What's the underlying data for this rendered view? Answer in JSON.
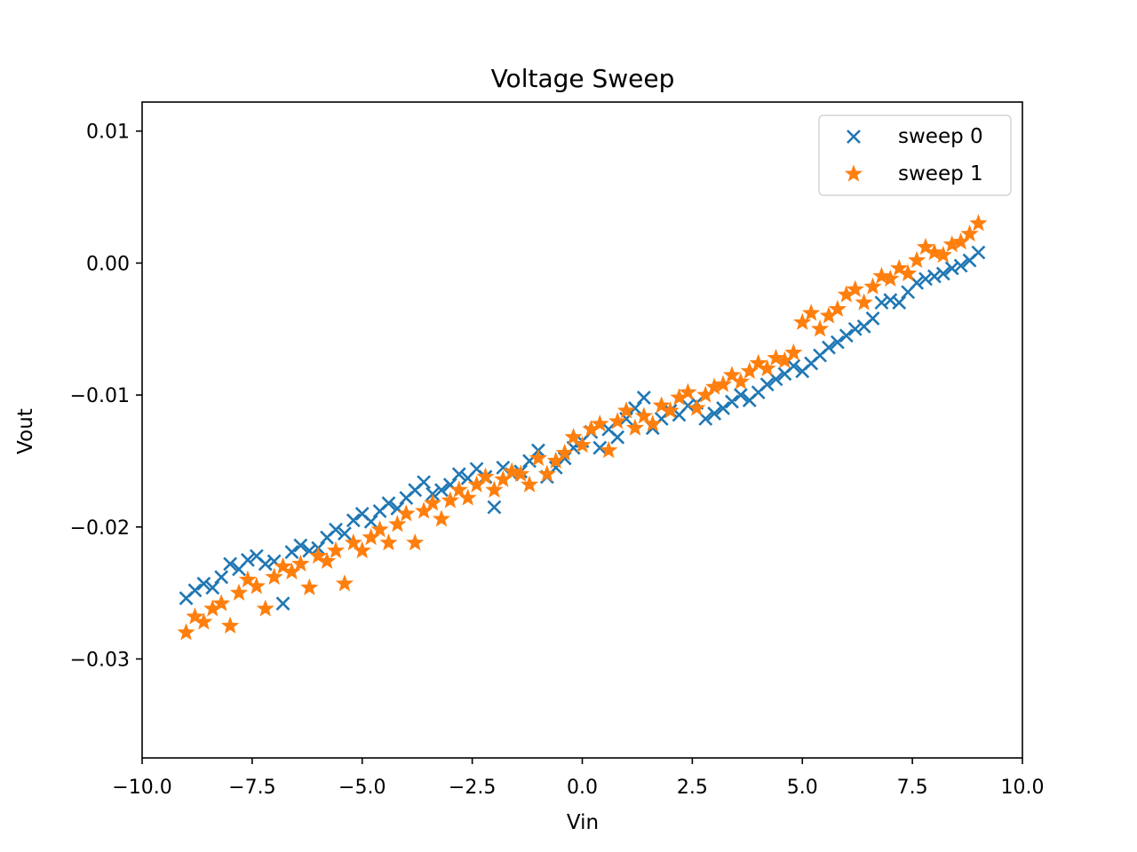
{
  "chart_data": {
    "type": "scatter",
    "title": "Voltage Sweep",
    "xlabel": "Vin",
    "ylabel": "Vout",
    "xlim": [
      -10.0,
      10.0
    ],
    "ylim": [
      -0.0375,
      0.0122
    ],
    "xticks": [
      -10.0,
      -7.5,
      -5.0,
      -2.5,
      0.0,
      2.5,
      5.0,
      7.5,
      10.0
    ],
    "xtick_labels": [
      "−10.0",
      "−7.5",
      "−5.0",
      "−2.5",
      "0.0",
      "2.5",
      "5.0",
      "7.5",
      "10.0"
    ],
    "yticks": [
      0.01,
      0.0,
      -0.01,
      -0.02,
      -0.03
    ],
    "ytick_labels": [
      "0.01",
      "0.00",
      "−0.01",
      "−0.02",
      "−0.03"
    ],
    "grid": false,
    "legend_position": "top-right",
    "series": [
      {
        "name": "sweep 0",
        "marker": "x",
        "color": "#1f77b4",
        "points": [
          [
            -9.0,
            -0.0254
          ],
          [
            -8.8,
            -0.0248
          ],
          [
            -8.6,
            -0.0243
          ],
          [
            -8.4,
            -0.0246
          ],
          [
            -8.2,
            -0.0238
          ],
          [
            -8.0,
            -0.0228
          ],
          [
            -7.8,
            -0.0232
          ],
          [
            -7.6,
            -0.0225
          ],
          [
            -7.4,
            -0.0222
          ],
          [
            -7.2,
            -0.0228
          ],
          [
            -7.0,
            -0.0226
          ],
          [
            -6.8,
            -0.0258
          ],
          [
            -6.6,
            -0.0219
          ],
          [
            -6.4,
            -0.0214
          ],
          [
            -6.2,
            -0.0218
          ],
          [
            -6.0,
            -0.0216
          ],
          [
            -5.8,
            -0.0208
          ],
          [
            -5.6,
            -0.0202
          ],
          [
            -5.4,
            -0.0205
          ],
          [
            -5.2,
            -0.0195
          ],
          [
            -5.0,
            -0.019
          ],
          [
            -4.8,
            -0.0196
          ],
          [
            -4.6,
            -0.0188
          ],
          [
            -4.4,
            -0.0182
          ],
          [
            -4.2,
            -0.0186
          ],
          [
            -4.0,
            -0.0178
          ],
          [
            -3.8,
            -0.0172
          ],
          [
            -3.6,
            -0.0166
          ],
          [
            -3.4,
            -0.0175
          ],
          [
            -3.2,
            -0.0172
          ],
          [
            -3.0,
            -0.0168
          ],
          [
            -2.8,
            -0.016
          ],
          [
            -2.6,
            -0.0163
          ],
          [
            -2.4,
            -0.0156
          ],
          [
            -2.2,
            -0.0162
          ],
          [
            -2.0,
            -0.0185
          ],
          [
            -1.8,
            -0.0155
          ],
          [
            -1.6,
            -0.016
          ],
          [
            -1.4,
            -0.0158
          ],
          [
            -1.2,
            -0.015
          ],
          [
            -1.0,
            -0.0142
          ],
          [
            -0.8,
            -0.0162
          ],
          [
            -0.6,
            -0.0155
          ],
          [
            -0.4,
            -0.0148
          ],
          [
            -0.2,
            -0.014
          ],
          [
            0.0,
            -0.0135
          ],
          [
            0.2,
            -0.0128
          ],
          [
            0.4,
            -0.014
          ],
          [
            0.6,
            -0.0126
          ],
          [
            0.8,
            -0.0132
          ],
          [
            1.0,
            -0.0118
          ],
          [
            1.2,
            -0.011
          ],
          [
            1.4,
            -0.0102
          ],
          [
            1.6,
            -0.0125
          ],
          [
            1.8,
            -0.0118
          ],
          [
            2.0,
            -0.0112
          ],
          [
            2.2,
            -0.0115
          ],
          [
            2.4,
            -0.0108
          ],
          [
            2.6,
            -0.0106
          ],
          [
            2.8,
            -0.0118
          ],
          [
            3.0,
            -0.0114
          ],
          [
            3.2,
            -0.011
          ],
          [
            3.4,
            -0.0105
          ],
          [
            3.6,
            -0.01
          ],
          [
            3.8,
            -0.0104
          ],
          [
            4.0,
            -0.0098
          ],
          [
            4.2,
            -0.0092
          ],
          [
            4.4,
            -0.0088
          ],
          [
            4.6,
            -0.0084
          ],
          [
            4.8,
            -0.0078
          ],
          [
            5.0,
            -0.0082
          ],
          [
            5.2,
            -0.0076
          ],
          [
            5.4,
            -0.007
          ],
          [
            5.6,
            -0.0064
          ],
          [
            5.8,
            -0.006
          ],
          [
            6.0,
            -0.0055
          ],
          [
            6.2,
            -0.005
          ],
          [
            6.4,
            -0.0048
          ],
          [
            6.6,
            -0.0042
          ],
          [
            6.8,
            -0.003
          ],
          [
            7.0,
            -0.0028
          ],
          [
            7.2,
            -0.003
          ],
          [
            7.4,
            -0.0022
          ],
          [
            7.6,
            -0.0015
          ],
          [
            7.8,
            -0.0012
          ],
          [
            8.0,
            -0.001
          ],
          [
            8.2,
            -0.0008
          ],
          [
            8.4,
            -0.0004
          ],
          [
            8.6,
            -0.0002
          ],
          [
            8.8,
            0.0002
          ],
          [
            9.0,
            0.0008
          ]
        ]
      },
      {
        "name": "sweep 1",
        "marker": "*",
        "color": "#ff7f0e",
        "points": [
          [
            -9.0,
            -0.028
          ],
          [
            -8.8,
            -0.0268
          ],
          [
            -8.6,
            -0.0272
          ],
          [
            -8.4,
            -0.0262
          ],
          [
            -8.2,
            -0.0258
          ],
          [
            -8.0,
            -0.0275
          ],
          [
            -7.8,
            -0.025
          ],
          [
            -7.6,
            -0.024
          ],
          [
            -7.4,
            -0.0245
          ],
          [
            -7.2,
            -0.0262
          ],
          [
            -7.0,
            -0.0238
          ],
          [
            -6.8,
            -0.023
          ],
          [
            -6.6,
            -0.0234
          ],
          [
            -6.4,
            -0.0228
          ],
          [
            -6.2,
            -0.0246
          ],
          [
            -6.0,
            -0.0222
          ],
          [
            -5.8,
            -0.0226
          ],
          [
            -5.6,
            -0.0218
          ],
          [
            -5.4,
            -0.0243
          ],
          [
            -5.2,
            -0.0212
          ],
          [
            -5.0,
            -0.0218
          ],
          [
            -4.8,
            -0.0208
          ],
          [
            -4.6,
            -0.0202
          ],
          [
            -4.4,
            -0.0212
          ],
          [
            -4.2,
            -0.0198
          ],
          [
            -4.0,
            -0.019
          ],
          [
            -3.8,
            -0.0212
          ],
          [
            -3.6,
            -0.0188
          ],
          [
            -3.4,
            -0.0182
          ],
          [
            -3.2,
            -0.0194
          ],
          [
            -3.0,
            -0.018
          ],
          [
            -2.8,
            -0.0172
          ],
          [
            -2.6,
            -0.0178
          ],
          [
            -2.4,
            -0.0168
          ],
          [
            -2.2,
            -0.0162
          ],
          [
            -2.0,
            -0.0172
          ],
          [
            -1.8,
            -0.0164
          ],
          [
            -1.6,
            -0.0158
          ],
          [
            -1.4,
            -0.016
          ],
          [
            -1.2,
            -0.0168
          ],
          [
            -1.0,
            -0.0148
          ],
          [
            -0.8,
            -0.016
          ],
          [
            -0.6,
            -0.015
          ],
          [
            -0.4,
            -0.0144
          ],
          [
            -0.2,
            -0.0132
          ],
          [
            0.0,
            -0.0138
          ],
          [
            0.2,
            -0.0126
          ],
          [
            0.4,
            -0.0122
          ],
          [
            0.6,
            -0.0142
          ],
          [
            0.8,
            -0.012
          ],
          [
            1.0,
            -0.0112
          ],
          [
            1.2,
            -0.0125
          ],
          [
            1.4,
            -0.0116
          ],
          [
            1.6,
            -0.0122
          ],
          [
            1.8,
            -0.0108
          ],
          [
            2.0,
            -0.0112
          ],
          [
            2.2,
            -0.0102
          ],
          [
            2.4,
            -0.0098
          ],
          [
            2.6,
            -0.011
          ],
          [
            2.8,
            -0.01
          ],
          [
            3.0,
            -0.0094
          ],
          [
            3.2,
            -0.0092
          ],
          [
            3.4,
            -0.0085
          ],
          [
            3.6,
            -0.009
          ],
          [
            3.8,
            -0.0082
          ],
          [
            4.0,
            -0.0076
          ],
          [
            4.2,
            -0.008
          ],
          [
            4.4,
            -0.0072
          ],
          [
            4.6,
            -0.0074
          ],
          [
            4.8,
            -0.0068
          ],
          [
            5.0,
            -0.0045
          ],
          [
            5.2,
            -0.0038
          ],
          [
            5.4,
            -0.005
          ],
          [
            5.6,
            -0.004
          ],
          [
            5.8,
            -0.0035
          ],
          [
            6.0,
            -0.0024
          ],
          [
            6.2,
            -0.002
          ],
          [
            6.4,
            -0.003
          ],
          [
            6.6,
            -0.0018
          ],
          [
            6.8,
            -0.001
          ],
          [
            7.0,
            -0.0012
          ],
          [
            7.2,
            -0.0004
          ],
          [
            7.4,
            -0.0008
          ],
          [
            7.6,
            0.0002
          ],
          [
            7.8,
            0.0012
          ],
          [
            8.0,
            0.0008
          ],
          [
            8.2,
            0.0006
          ],
          [
            8.4,
            0.0014
          ],
          [
            8.6,
            0.0016
          ],
          [
            8.8,
            0.0022
          ],
          [
            9.0,
            0.003
          ]
        ]
      }
    ]
  }
}
